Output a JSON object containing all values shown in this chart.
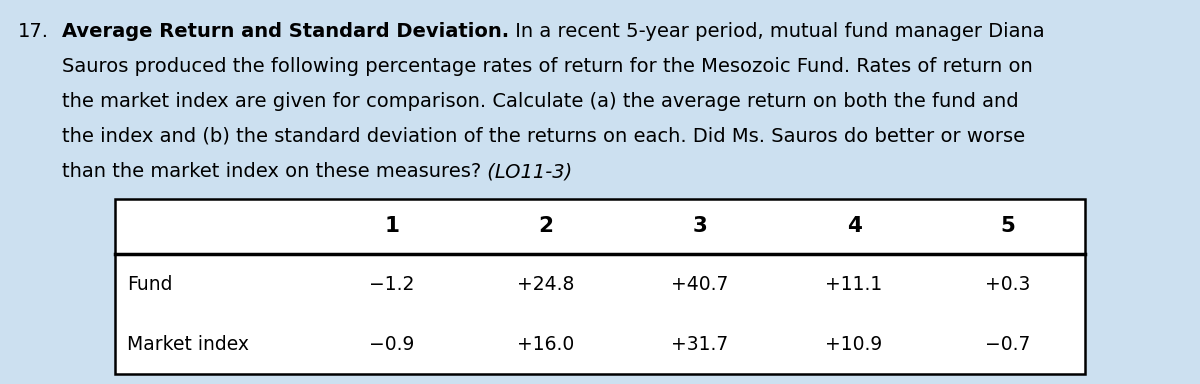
{
  "question_number": "17.",
  "title_bold": "Average Return and Standard Deviation.",
  "line1_rest": " In a recent 5-year period, mutual fund manager Diana",
  "line2": "Sauros produced the following percentage rates of return for the Mesozoic Fund. Rates of return on",
  "line3": "the market index are given for comparison. Calculate (a) the average return on both the fund and",
  "line4": "the index and (b) the standard deviation of the returns on each. Did Ms. Sauros do better or worse",
  "line5_main": "than the market index on these measures?",
  "line5_italic": " (LO11-3)",
  "background_color": "#cce0f0",
  "text_color": "#000000",
  "table_bg": "#ffffff",
  "col_headers": [
    "",
    "1",
    "2",
    "3",
    "4",
    "5"
  ],
  "rows": [
    [
      "Fund",
      "−1.2",
      "+24.8",
      "+40.7",
      "+11.1",
      "+0.3"
    ],
    [
      "Market index",
      "−0.9",
      "+16.0",
      "+31.7",
      "+10.9",
      "−0.7"
    ]
  ],
  "font_size_text": 14.0,
  "font_size_table": 13.5,
  "figwidth": 12.0,
  "figheight": 3.84
}
